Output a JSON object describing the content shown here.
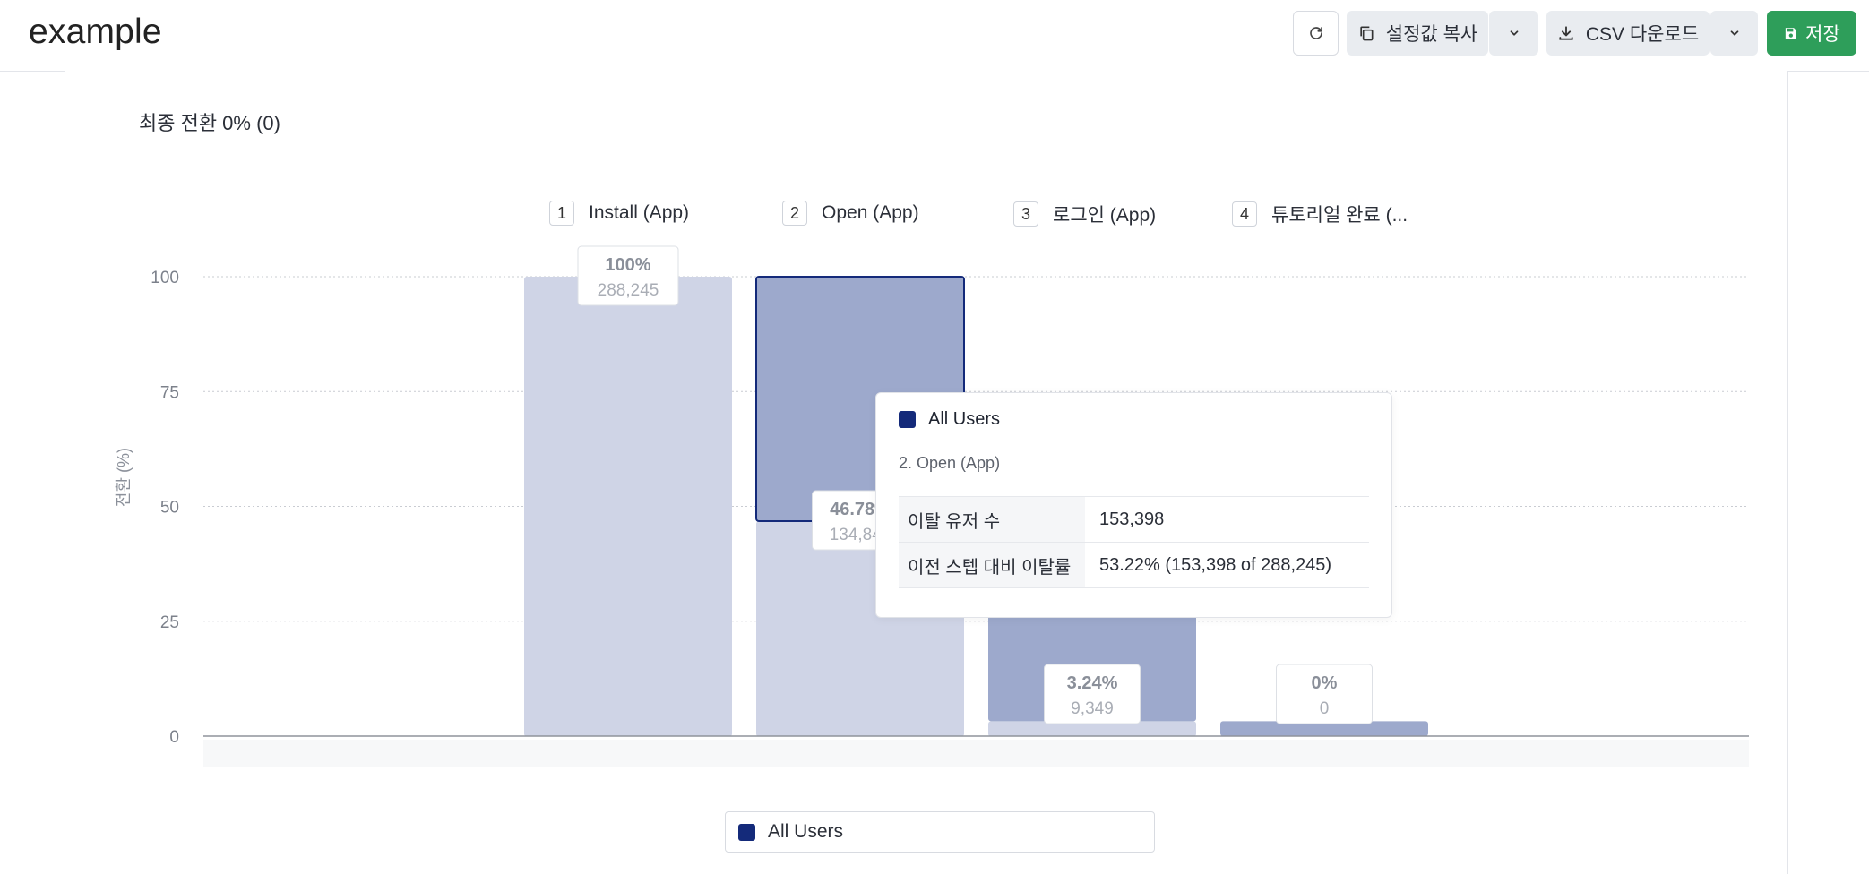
{
  "header": {
    "title": "example",
    "refresh_icon": "refresh-icon",
    "copy_settings_label": "설정값 복사",
    "csv_download_label": "CSV 다운로드",
    "save_label": "저장"
  },
  "colors": {
    "accent": "#142a7a",
    "bar_dark": "#9da9cc",
    "bar_light": "#cfd4e6",
    "save_green": "#2e9e5a"
  },
  "final_conversion": "최종 전환 0% (0)",
  "chart_data": {
    "type": "bar",
    "ylabel": "전환 (%)",
    "ylim": [
      0,
      100
    ],
    "yticks": [
      0,
      25,
      50,
      75,
      100
    ],
    "grid": true,
    "legend_position": "bottom-center",
    "categories": [
      "Install (App)",
      "Open (App)",
      "로그인 (App)",
      "튜토리얼 완료 (..."
    ],
    "step_numbers": [
      "1",
      "2",
      "3",
      "4"
    ],
    "series": [
      {
        "name": "All Users",
        "conversion_percent": [
          100,
          46.78,
          3.24,
          0
        ],
        "dropoff_from_previous_percent": [
          0,
          53.22,
          43.54,
          3.24
        ],
        "percent_labels": [
          "100%",
          "46.78%",
          "3.24%",
          "0%"
        ],
        "count_labels": [
          "288,245",
          "134,847",
          "9,349",
          "0"
        ]
      }
    ],
    "highlighted_step": 1
  },
  "tooltip": {
    "series_name": "All Users",
    "step_title": "2. Open (App)",
    "rows": [
      {
        "label": "이탈 유저 수",
        "value": "153,398"
      },
      {
        "label": "이전 스텝 대비 이탈률",
        "value": "53.22% (153,398 of 288,245)"
      }
    ]
  },
  "legend": {
    "series_name": "All Users"
  }
}
